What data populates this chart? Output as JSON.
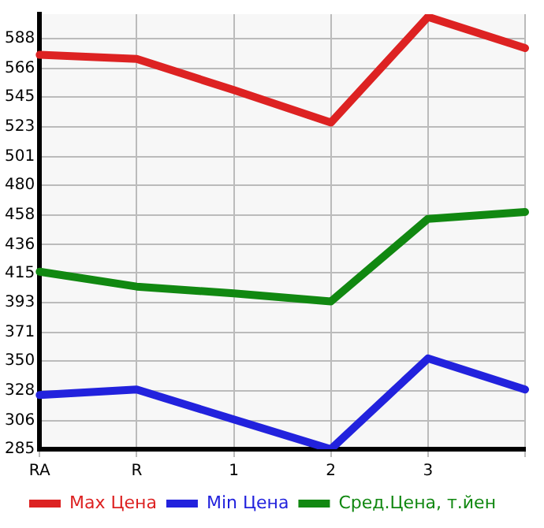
{
  "chart_data": {
    "type": "line",
    "categories": [
      "RA",
      "R",
      "1",
      "2",
      "3",
      null
    ],
    "series": [
      {
        "name": "Max Цена",
        "color": "#dd2222",
        "values": [
          576,
          573,
          550,
          526,
          604,
          581
        ]
      },
      {
        "name": "Min Цена",
        "color": "#2222dd",
        "values": [
          325,
          329,
          307,
          285,
          352,
          329
        ]
      },
      {
        "name": "Сред.Цена, т.йен",
        "color": "#118811",
        "values": [
          416,
          405,
          400,
          394,
          455,
          460
        ]
      }
    ],
    "ylim": [
      285,
      606
    ],
    "yticks": [
      285,
      306,
      328,
      350,
      371,
      393,
      415,
      436,
      458,
      480,
      501,
      523,
      545,
      566,
      588
    ],
    "grid": true,
    "legend": "bottom",
    "marker": "none",
    "line_style": "solid"
  }
}
